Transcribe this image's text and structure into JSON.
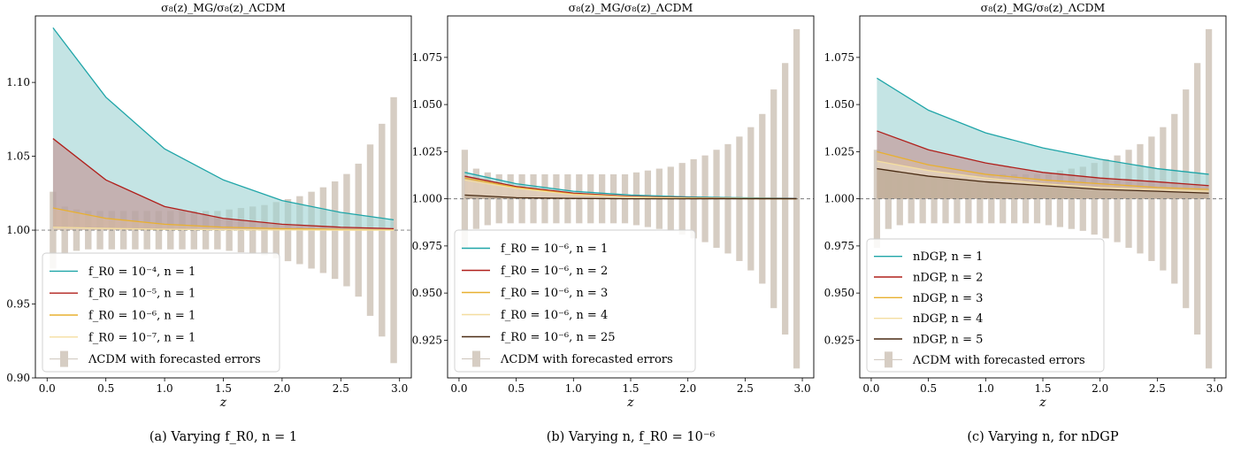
{
  "chart_data": [
    {
      "type": "line",
      "panel_title": "σ₈(z)_MG/σ₈(z)_ΛCDM",
      "caption": "(a) Varying f_R0, n = 1",
      "xlabel": "z",
      "xlim": [
        -0.1,
        3.1
      ],
      "ylim": [
        0.9,
        1.145
      ],
      "xticks": [
        "0.0",
        "0.5",
        "1.0",
        "1.5",
        "2.0",
        "2.5",
        "3.0"
      ],
      "yticks": [
        "0.90",
        "0.95",
        "1.00",
        "1.05",
        "1.10"
      ],
      "reference_line": 1.0,
      "legend_position": "lower-left",
      "series": [
        {
          "name": "f_R0 = 10⁻⁴, n = 1",
          "color": "#1fa5a8",
          "fill": "#9fd3d4",
          "x": [
            0.05,
            0.5,
            1.0,
            1.5,
            2.0,
            2.5,
            2.95
          ],
          "y": [
            1.137,
            1.09,
            1.055,
            1.034,
            1.02,
            1.012,
            1.007
          ]
        },
        {
          "name": "f_R0 = 10⁻⁵, n = 1",
          "color": "#b0201c",
          "fill": "#c39191",
          "x": [
            0.05,
            0.5,
            1.0,
            1.5,
            2.0,
            2.5,
            2.95
          ],
          "y": [
            1.062,
            1.034,
            1.016,
            1.008,
            1.004,
            1.002,
            1.001
          ]
        },
        {
          "name": "f_R0 = 10⁻⁶, n = 1",
          "color": "#e8b030",
          "fill": "#d8b9a0",
          "x": [
            0.05,
            0.5,
            1.0,
            1.5,
            2.0,
            2.5,
            2.95
          ],
          "y": [
            1.015,
            1.008,
            1.004,
            1.002,
            1.001,
            1.0005,
            1.0002
          ]
        },
        {
          "name": "f_R0 = 10⁻⁷, n = 1",
          "color": "#f4dea0",
          "fill": "#e8dcc6",
          "x": [
            0.05,
            0.5,
            1.0,
            1.5,
            2.0,
            2.5,
            2.95
          ],
          "y": [
            1.002,
            1.0012,
            1.0006,
            1.0003,
            1.0001,
            1.0,
            1.0
          ]
        }
      ],
      "errorbars": {
        "name": "ΛCDM with forecasted errors",
        "color": "#d6cdc3",
        "z": [
          0.05,
          0.15,
          0.25,
          0.35,
          0.45,
          0.55,
          0.65,
          0.75,
          0.85,
          0.95,
          1.05,
          1.15,
          1.25,
          1.35,
          1.45,
          1.55,
          1.65,
          1.75,
          1.85,
          1.95,
          2.05,
          2.15,
          2.25,
          2.35,
          2.45,
          2.55,
          2.65,
          2.75,
          2.85,
          2.95
        ],
        "err": [
          0.026,
          0.016,
          0.014,
          0.013,
          0.013,
          0.013,
          0.013,
          0.013,
          0.013,
          0.013,
          0.013,
          0.013,
          0.013,
          0.013,
          0.013,
          0.014,
          0.015,
          0.016,
          0.017,
          0.019,
          0.021,
          0.023,
          0.026,
          0.029,
          0.033,
          0.038,
          0.045,
          0.058,
          0.072,
          0.09
        ]
      }
    },
    {
      "type": "line",
      "panel_title": "σ₈(z)_MG/σ₈(z)_ΛCDM",
      "caption": "(b) Varying n, f_R0 = 10⁻⁶",
      "xlabel": "z",
      "xlim": [
        -0.1,
        3.1
      ],
      "ylim": [
        0.905,
        1.097
      ],
      "xticks": [
        "0.0",
        "0.5",
        "1.0",
        "1.5",
        "2.0",
        "2.5",
        "3.0"
      ],
      "yticks": [
        "0.925",
        "0.950",
        "0.975",
        "1.000",
        "1.025",
        "1.050",
        "1.075"
      ],
      "reference_line": 1.0,
      "legend_position": "lower-left",
      "series": [
        {
          "name": "f_R0 = 10⁻⁶, n = 1",
          "color": "#1fa5a8",
          "fill": "#9fd3d4",
          "x": [
            0.05,
            0.5,
            1.0,
            1.5,
            2.0,
            2.5,
            2.95
          ],
          "y": [
            1.014,
            1.008,
            1.004,
            1.002,
            1.001,
            1.0005,
            1.0002
          ]
        },
        {
          "name": "f_R0 = 10⁻⁶, n = 2",
          "color": "#b0201c",
          "fill": "#c39191",
          "x": [
            0.05,
            0.5,
            1.0,
            1.5,
            2.0,
            2.5,
            2.95
          ],
          "y": [
            1.012,
            1.0065,
            1.003,
            1.0013,
            1.0006,
            1.0002,
            1.0001
          ]
        },
        {
          "name": "f_R0 = 10⁻⁶, n = 3",
          "color": "#e8b030",
          "fill": "#d8b9a0",
          "x": [
            0.05,
            0.5,
            1.0,
            1.5,
            2.0,
            2.5,
            2.95
          ],
          "y": [
            1.011,
            1.006,
            1.0025,
            1.001,
            1.0004,
            1.0001,
            1.0
          ]
        },
        {
          "name": "f_R0 = 10⁻⁶, n = 4",
          "color": "#f4dea0",
          "fill": "#e8dcc6",
          "x": [
            0.05,
            0.5,
            1.0,
            1.5,
            2.0,
            2.5,
            2.95
          ],
          "y": [
            1.01,
            1.0055,
            1.0022,
            1.0009,
            1.0003,
            1.0001,
            1.0
          ]
        },
        {
          "name": "f_R0 = 10⁻⁶, n = 25",
          "color": "#4a2c14",
          "fill": "#b3a08c",
          "x": [
            0.05,
            0.5,
            1.0,
            1.5,
            2.0,
            2.5,
            2.95
          ],
          "y": [
            1.002,
            1.0006,
            1.0002,
            1.0,
            1.0,
            1.0,
            1.0
          ]
        }
      ],
      "errorbars": {
        "name": "ΛCDM with forecasted errors",
        "color": "#d6cdc3",
        "z": [
          0.05,
          0.15,
          0.25,
          0.35,
          0.45,
          0.55,
          0.65,
          0.75,
          0.85,
          0.95,
          1.05,
          1.15,
          1.25,
          1.35,
          1.45,
          1.55,
          1.65,
          1.75,
          1.85,
          1.95,
          2.05,
          2.15,
          2.25,
          2.35,
          2.45,
          2.55,
          2.65,
          2.75,
          2.85,
          2.95
        ],
        "err": [
          0.026,
          0.016,
          0.014,
          0.013,
          0.013,
          0.013,
          0.013,
          0.013,
          0.013,
          0.013,
          0.013,
          0.013,
          0.013,
          0.013,
          0.013,
          0.014,
          0.015,
          0.016,
          0.017,
          0.019,
          0.021,
          0.023,
          0.026,
          0.029,
          0.033,
          0.038,
          0.045,
          0.058,
          0.072,
          0.09
        ]
      }
    },
    {
      "type": "line",
      "panel_title": "σ₈(z)_MG/σ₈(z)_ΛCDM",
      "caption": "(c) Varying n, for nDGP",
      "xlabel": "z",
      "xlim": [
        -0.1,
        3.1
      ],
      "ylim": [
        0.905,
        1.097
      ],
      "xticks": [
        "0.0",
        "0.5",
        "1.0",
        "1.5",
        "2.0",
        "2.5",
        "3.0"
      ],
      "yticks": [
        "0.925",
        "0.950",
        "0.975",
        "1.000",
        "1.025",
        "1.050",
        "1.075"
      ],
      "reference_line": 1.0,
      "legend_position": "lower-left",
      "series": [
        {
          "name": "nDGP, n = 1",
          "color": "#1fa5a8",
          "fill": "#9fd3d4",
          "x": [
            0.05,
            0.5,
            1.0,
            1.5,
            2.0,
            2.5,
            2.95
          ],
          "y": [
            1.064,
            1.047,
            1.035,
            1.027,
            1.021,
            1.016,
            1.013
          ]
        },
        {
          "name": "nDGP, n = 2",
          "color": "#b0201c",
          "fill": "#c39191",
          "x": [
            0.05,
            0.5,
            1.0,
            1.5,
            2.0,
            2.5,
            2.95
          ],
          "y": [
            1.036,
            1.026,
            1.019,
            1.014,
            1.011,
            1.009,
            1.007
          ]
        },
        {
          "name": "nDGP, n = 3",
          "color": "#e8b030",
          "fill": "#d8b9a0",
          "x": [
            0.05,
            0.5,
            1.0,
            1.5,
            2.0,
            2.5,
            2.95
          ],
          "y": [
            1.025,
            1.018,
            1.013,
            1.01,
            1.008,
            1.006,
            1.005
          ]
        },
        {
          "name": "nDGP, n = 4",
          "color": "#f4dea0",
          "fill": "#e8dcc6",
          "x": [
            0.05,
            0.5,
            1.0,
            1.5,
            2.0,
            2.5,
            2.95
          ],
          "y": [
            1.02,
            1.015,
            1.011,
            1.008,
            1.006,
            1.005,
            1.004
          ]
        },
        {
          "name": "nDGP, n = 5",
          "color": "#4a2c14",
          "fill": "#b3a08c",
          "x": [
            0.05,
            0.5,
            1.0,
            1.5,
            2.0,
            2.5,
            2.95
          ],
          "y": [
            1.016,
            1.012,
            1.009,
            1.007,
            1.005,
            1.004,
            1.003
          ]
        }
      ],
      "errorbars": {
        "name": "ΛCDM with forecasted errors",
        "color": "#d6cdc3",
        "z": [
          0.05,
          0.15,
          0.25,
          0.35,
          0.45,
          0.55,
          0.65,
          0.75,
          0.85,
          0.95,
          1.05,
          1.15,
          1.25,
          1.35,
          1.45,
          1.55,
          1.65,
          1.75,
          1.85,
          1.95,
          2.05,
          2.15,
          2.25,
          2.35,
          2.45,
          2.55,
          2.65,
          2.75,
          2.85,
          2.95
        ],
        "err": [
          0.026,
          0.016,
          0.014,
          0.013,
          0.013,
          0.013,
          0.013,
          0.013,
          0.013,
          0.013,
          0.013,
          0.013,
          0.013,
          0.013,
          0.013,
          0.014,
          0.015,
          0.016,
          0.017,
          0.019,
          0.021,
          0.023,
          0.026,
          0.029,
          0.033,
          0.038,
          0.045,
          0.058,
          0.072,
          0.09
        ]
      }
    }
  ]
}
